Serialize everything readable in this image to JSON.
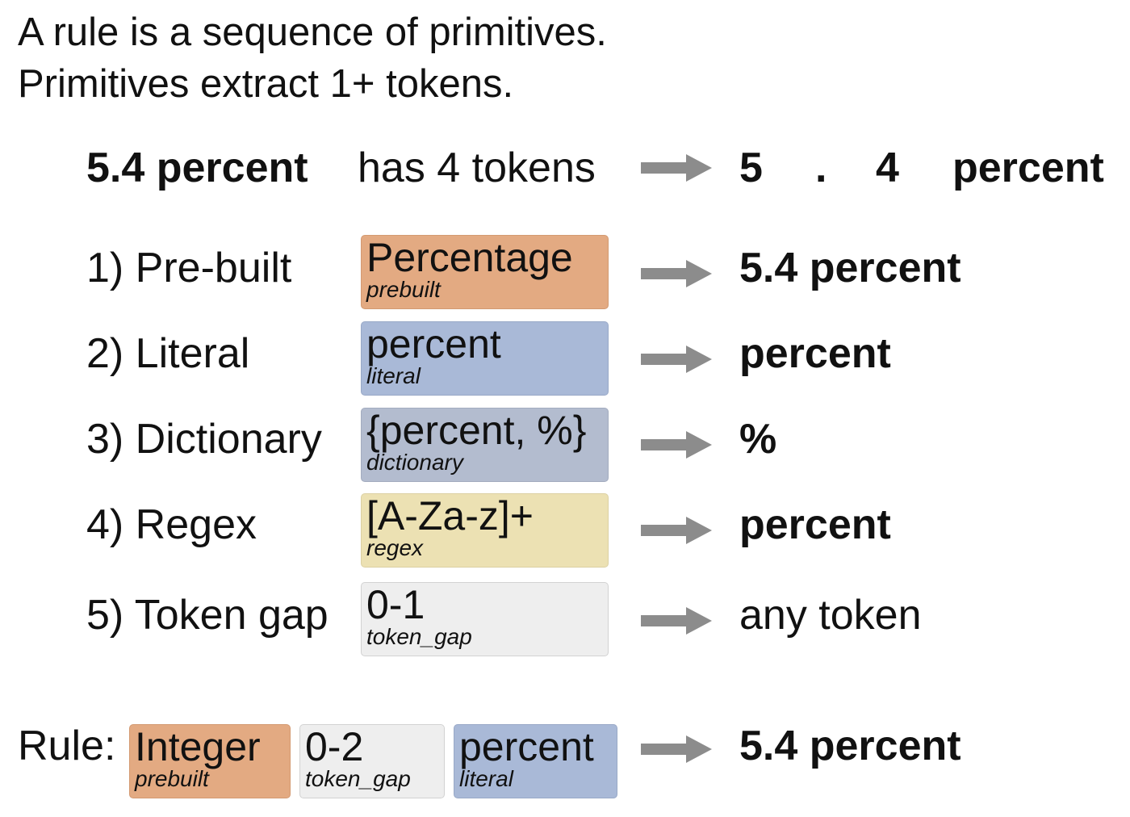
{
  "heading": {
    "line1": "A rule is a sequence of primitives.",
    "line2": "Primitives extract 1+ tokens."
  },
  "token_row": {
    "phrase": "5.4 percent",
    "description": "has 4 tokens",
    "tokens": [
      "5",
      ".",
      "4",
      "percent"
    ]
  },
  "primitives": [
    {
      "label": "1) Pre-built",
      "value": "Percentage",
      "type": "prebuilt",
      "result": "5.4 percent",
      "result_bold": true,
      "color": "#e3aa82"
    },
    {
      "label": "2) Literal",
      "value": "percent",
      "type": "literal",
      "result": "percent",
      "result_bold": true,
      "color": "#a9b9d7"
    },
    {
      "label": "3) Dictionary",
      "value": "{percent, %}",
      "type": "dictionary",
      "result": "%",
      "result_bold": true,
      "color": "#b3bccf"
    },
    {
      "label": "4) Regex",
      "value": "[A-Za-z]+",
      "type": "regex",
      "result": "percent",
      "result_bold": true,
      "color": "#ece1b3"
    },
    {
      "label": "5) Token gap",
      "value": "0-1",
      "type": "token_gap",
      "result": "any token",
      "result_bold": false,
      "color": "#eeeeee"
    }
  ],
  "rule": {
    "label": "Rule:",
    "parts": [
      {
        "value": "Integer",
        "type": "prebuilt",
        "color": "#e3aa82"
      },
      {
        "value": "0-2",
        "type": "token_gap",
        "color": "#eeeeee"
      },
      {
        "value": "percent",
        "type": "literal",
        "color": "#a9b9d7"
      }
    ],
    "result": "5.4 percent"
  },
  "arrow_color": "#8c8c8c"
}
